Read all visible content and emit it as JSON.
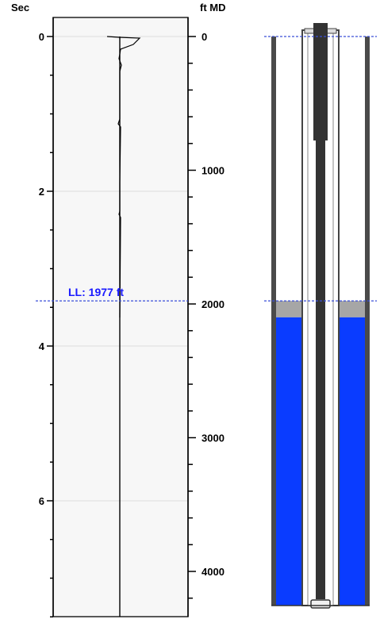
{
  "left_axis": {
    "unit_label": "Sec",
    "range": [
      0,
      7.5
    ],
    "major_ticks": [
      "0",
      "2",
      "4",
      "6"
    ],
    "major_values": [
      0,
      2,
      4,
      6
    ],
    "minor_step": 0.5
  },
  "right_axis": {
    "unit_label": "ft MD",
    "range": [
      0,
      4400
    ],
    "major_ticks": [
      "0",
      "1000",
      "2000",
      "3000",
      "4000"
    ],
    "major_values": [
      0,
      1000,
      2000,
      3000,
      4000
    ],
    "minor_step": 200
  },
  "liquid_level": {
    "label": "LL: 1977 ft",
    "depth_ft": 1977
  },
  "well": {
    "fluid_top_ft": 2100,
    "gas_color": "#a6a6a6",
    "fluid_color": "#0a3cff",
    "rod_color": "#333333",
    "marker_line_color": "#3a4fd8"
  },
  "trace_color": "#000000"
}
